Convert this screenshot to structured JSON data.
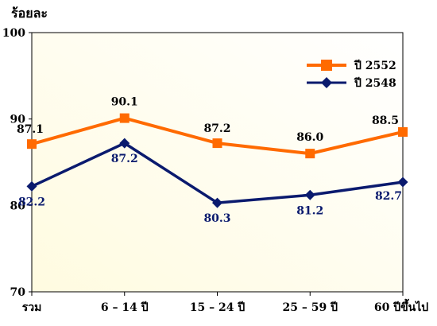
{
  "chart_data": {
    "type": "line",
    "title": "",
    "ylabel": "ร้อยละ",
    "xlabel": "",
    "categories": [
      "รวม",
      "6 – 14 ปี",
      "15 – 24 ปี",
      "25 – 59 ปี",
      "60 ปีขึ้นไป"
    ],
    "ylim": [
      70,
      100
    ],
    "yticks": [
      "70",
      "80",
      "90",
      "100"
    ],
    "grid": false,
    "legend_position": "top-right",
    "series": [
      {
        "name": "ปี 2552",
        "values": [
          87.1,
          90.1,
          87.2,
          86.0,
          88.5
        ],
        "labels": [
          "87.1",
          "90.1",
          "87.2",
          "86.0",
          "88.5"
        ],
        "color": "#ff6a00",
        "label_color": "#000000",
        "marker": "square"
      },
      {
        "name": "ปี 2548",
        "values": [
          82.2,
          87.2,
          80.3,
          81.2,
          82.7
        ],
        "labels": [
          "82.2",
          "87.2",
          "80.3",
          "81.2",
          "82.7"
        ],
        "color": "#0a1a6e",
        "label_color": "#0a1a6e",
        "marker": "diamond"
      }
    ],
    "plot_background": [
      "#fffbe0",
      "#ffffff"
    ]
  }
}
